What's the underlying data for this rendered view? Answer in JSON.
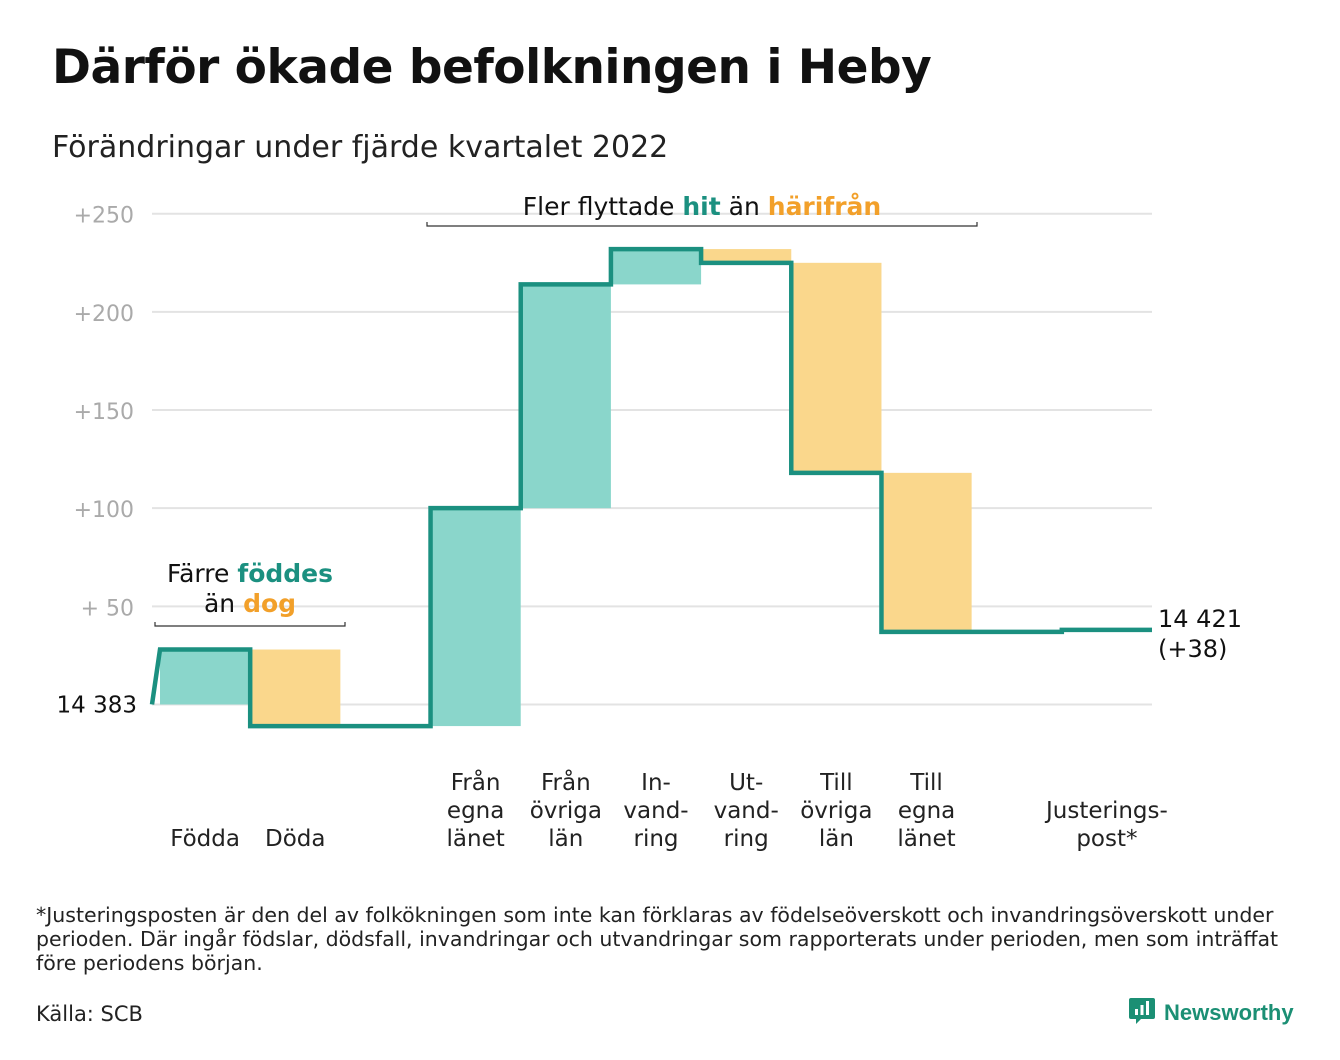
{
  "title": "Därför ökade befolkningen i Heby",
  "subtitle": "Förändringar under fjärde kvartalet 2022",
  "colors": {
    "positive": "#8ad6cb",
    "negative": "#fad78c",
    "line": "#1b9080",
    "hit": "#1b9080",
    "harifran": "#f2a02a",
    "grid": "#e3e3e3",
    "tick": "#aaaaaa",
    "brand": "#1b8f74"
  },
  "chart_data": {
    "type": "bar",
    "ylim": [
      -13,
      257
    ],
    "yticks": [
      {
        "value": 250,
        "label": "+250"
      },
      {
        "value": 200,
        "label": "+200"
      },
      {
        "value": 150,
        "label": "+150"
      },
      {
        "value": 100,
        "label": "+100"
      },
      {
        "value": 50,
        "label": "+ 50"
      }
    ],
    "start": {
      "value": 0,
      "label": "14 383"
    },
    "end": {
      "value": 38,
      "label_lines": [
        "14 421",
        "(+38)"
      ]
    },
    "steps": [
      {
        "category_lines": [
          "",
          "",
          "Födda"
        ],
        "change": 28
      },
      {
        "category_lines": [
          "",
          "",
          "Döda"
        ],
        "change": -39
      },
      {
        "category_lines": [
          "",
          "",
          ""
        ],
        "change": 0
      },
      {
        "category_lines": [
          "Från",
          "egna",
          "länet"
        ],
        "change": 111
      },
      {
        "category_lines": [
          "Från",
          "övriga",
          "län"
        ],
        "change": 114
      },
      {
        "category_lines": [
          "In-",
          "vand-",
          "ring"
        ],
        "change": 18
      },
      {
        "category_lines": [
          "Ut-",
          "vand-",
          "ring"
        ],
        "change": -7
      },
      {
        "category_lines": [
          "Till",
          "övriga",
          "län"
        ],
        "change": -107
      },
      {
        "category_lines": [
          "Till",
          "egna",
          "länet"
        ],
        "change": -81
      },
      {
        "category_lines": [
          "",
          "",
          ""
        ],
        "change": 0
      },
      {
        "category_lines": [
          "",
          "Justerings-",
          "post*"
        ],
        "change": 1
      }
    ],
    "annotations": [
      {
        "lines": [
          [
            {
              "text": "Färre ",
              "tone": "plain"
            },
            {
              "text": "föddes",
              "tone": "hit"
            }
          ],
          [
            {
              "text": "än ",
              "tone": "plain"
            },
            {
              "text": "dog",
              "tone": "harifran"
            }
          ]
        ]
      },
      {
        "lines": [
          [
            {
              "text": "Fler flyttade ",
              "tone": "plain"
            },
            {
              "text": "hit",
              "tone": "hit"
            },
            {
              "text": " än ",
              "tone": "plain"
            },
            {
              "text": "härifrån",
              "tone": "harifran"
            }
          ]
        ]
      }
    ]
  },
  "footnote": "*Justeringsposten är den del av folkökningen som inte kan förklaras av födelseöverskott och invandringsöverskott under perioden. Där ingår födslar, dödsfall, invandringar och utvandringar som rapporterats under perioden, men som inträffat före periodens början.",
  "source": "Källa: SCB",
  "brand": {
    "name": "Newsworthy",
    "icon": "newsworthy-logo-icon"
  }
}
